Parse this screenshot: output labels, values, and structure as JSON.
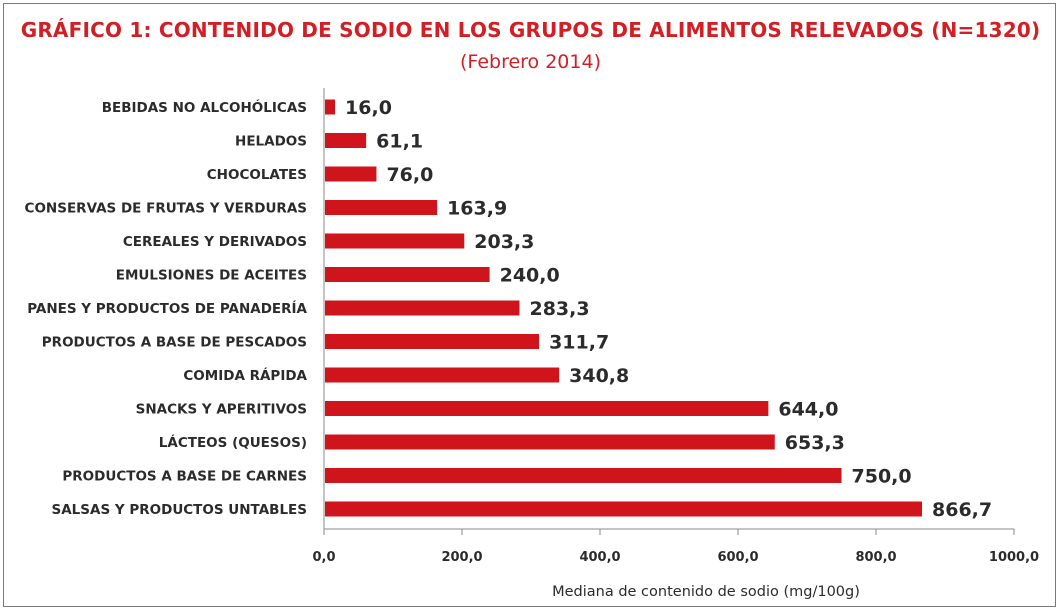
{
  "chart_data": {
    "type": "bar",
    "orientation": "horizontal",
    "title": "GRÁFICO 1: CONTENIDO DE SODIO EN LOS GRUPOS DE ALIMENTOS RELEVADOS (N=1320)",
    "subtitle": "(Febrero 2014)",
    "xlabel": "Mediana de contenido de sodio (mg/100g)",
    "ylabel": "",
    "xlim": [
      0,
      1000
    ],
    "xticks": [
      0,
      200,
      400,
      600,
      800,
      1000
    ],
    "xtick_labels": [
      "0,0",
      "200,0",
      "400,0",
      "600,0",
      "800,0",
      "1000,0"
    ],
    "grid": false,
    "legend": "none",
    "bar_color": "#d0141b",
    "categories": [
      "BEBIDAS NO ALCOHÓLICAS",
      "HELADOS",
      "CHOCOLATES",
      "CONSERVAS DE FRUTAS Y VERDURAS",
      "CEREALES Y DERIVADOS",
      "EMULSIONES DE ACEITES",
      "PANES Y PRODUCTOS DE PANADERÍA",
      "PRODUCTOS A BASE DE PESCADOS",
      "COMIDA RÁPIDA",
      "SNACKS Y APERITIVOS",
      "LÁCTEOS (QUESOS)",
      "PRODUCTOS A BASE DE CARNES",
      "SALSAS Y PRODUCTOS UNTABLES"
    ],
    "values": [
      16.0,
      61.1,
      76.0,
      163.9,
      203.3,
      240.0,
      283.3,
      311.7,
      340.8,
      644.0,
      653.3,
      750.0,
      866.7
    ],
    "value_labels": [
      "16,0",
      "61,1",
      "76,0",
      "163,9",
      "203,3",
      "240,0",
      "283,3",
      "311,7",
      "340,8",
      "644,0",
      "653,3",
      "750,0",
      "866,7"
    ]
  }
}
